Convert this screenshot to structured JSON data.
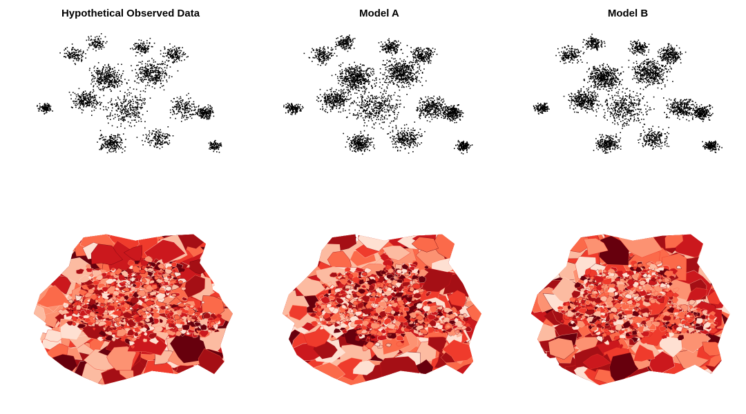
{
  "panels": [
    {
      "title": "Hypothetical Observed Data"
    },
    {
      "title": "Model A"
    },
    {
      "title": "Model B"
    }
  ],
  "rows": {
    "top": "point-pattern",
    "bottom": "choropleth"
  },
  "colors": {
    "background": "#ffffff",
    "points": "#000000",
    "choropleth_palette": [
      "#fee0d2",
      "#fcbba1",
      "#fc9272",
      "#fb6a4a",
      "#ef3b2c",
      "#cb181d",
      "#a50f15",
      "#67000d"
    ]
  }
}
